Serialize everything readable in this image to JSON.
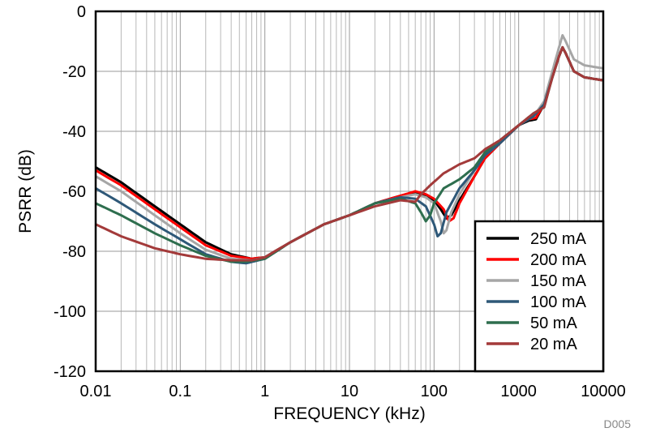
{
  "chart_data": {
    "type": "line",
    "xlabel": "FREQUENCY (kHz)",
    "ylabel": "PSRR (dB)",
    "x_scale": "log",
    "xlim": [
      0.01,
      10000
    ],
    "ylim": [
      -120,
      0
    ],
    "x_ticks": [
      "0.01",
      "0.1",
      "1",
      "10",
      "100",
      "1000",
      "10000"
    ],
    "y_ticks": [
      "0",
      "-20",
      "-40",
      "-60",
      "-80",
      "-100",
      "-120"
    ],
    "grid": true,
    "legend_position": "bottom-right",
    "figure_id": "D005",
    "series": [
      {
        "name": "250 mA",
        "color": "#000000",
        "points": [
          [
            0.01,
            -52
          ],
          [
            0.02,
            -57
          ],
          [
            0.05,
            -65
          ],
          [
            0.1,
            -71
          ],
          [
            0.2,
            -77
          ],
          [
            0.4,
            -81
          ],
          [
            0.7,
            -82.5
          ],
          [
            1,
            -82
          ],
          [
            2,
            -77
          ],
          [
            5,
            -71
          ],
          [
            10,
            -68
          ],
          [
            20,
            -64
          ],
          [
            40,
            -61.5
          ],
          [
            60,
            -60.5
          ],
          [
            80,
            -61.5
          ],
          [
            100,
            -63
          ],
          [
            120,
            -66
          ],
          [
            140,
            -69
          ],
          [
            160,
            -68
          ],
          [
            200,
            -63
          ],
          [
            300,
            -55
          ],
          [
            400,
            -49
          ],
          [
            600,
            -44
          ],
          [
            1000,
            -38
          ],
          [
            1300,
            -36.5
          ],
          [
            1600,
            -36
          ],
          [
            2000,
            -31
          ],
          [
            2500,
            -22
          ],
          [
            3000,
            -15
          ],
          [
            3300,
            -12
          ],
          [
            3600,
            -14
          ],
          [
            4500,
            -20
          ],
          [
            6000,
            -22
          ],
          [
            10000,
            -23
          ]
        ]
      },
      {
        "name": "200 mA",
        "color": "#ff0000",
        "points": [
          [
            0.01,
            -53
          ],
          [
            0.02,
            -58
          ],
          [
            0.05,
            -66
          ],
          [
            0.1,
            -72
          ],
          [
            0.2,
            -78
          ],
          [
            0.4,
            -81.5
          ],
          [
            0.7,
            -82.5
          ],
          [
            1,
            -82
          ],
          [
            2,
            -77
          ],
          [
            5,
            -71
          ],
          [
            10,
            -68
          ],
          [
            20,
            -64
          ],
          [
            40,
            -61.5
          ],
          [
            60,
            -60
          ],
          [
            80,
            -61
          ],
          [
            100,
            -62.5
          ],
          [
            130,
            -66
          ],
          [
            150,
            -70
          ],
          [
            170,
            -69
          ],
          [
            200,
            -64
          ],
          [
            300,
            -55
          ],
          [
            400,
            -49
          ],
          [
            600,
            -44
          ],
          [
            1000,
            -38
          ],
          [
            1300,
            -36
          ],
          [
            1600,
            -35.5
          ],
          [
            2000,
            -31
          ],
          [
            2500,
            -22
          ],
          [
            3000,
            -15
          ],
          [
            3300,
            -12
          ],
          [
            3600,
            -14
          ],
          [
            4500,
            -20
          ],
          [
            6000,
            -22
          ],
          [
            10000,
            -23
          ]
        ]
      },
      {
        "name": "150 mA",
        "color": "#a6a6a6",
        "points": [
          [
            0.01,
            -55
          ],
          [
            0.02,
            -60
          ],
          [
            0.05,
            -68
          ],
          [
            0.1,
            -74
          ],
          [
            0.2,
            -79.5
          ],
          [
            0.4,
            -82.5
          ],
          [
            0.7,
            -83
          ],
          [
            1,
            -82
          ],
          [
            2,
            -77
          ],
          [
            5,
            -71
          ],
          [
            10,
            -68
          ],
          [
            20,
            -64
          ],
          [
            40,
            -62
          ],
          [
            60,
            -61
          ],
          [
            80,
            -62
          ],
          [
            100,
            -64
          ],
          [
            120,
            -70
          ],
          [
            130,
            -74
          ],
          [
            140,
            -73
          ],
          [
            160,
            -67
          ],
          [
            200,
            -61
          ],
          [
            300,
            -53
          ],
          [
            400,
            -48
          ],
          [
            600,
            -44
          ],
          [
            1000,
            -38
          ],
          [
            1500,
            -35
          ],
          [
            2000,
            -30
          ],
          [
            2500,
            -20
          ],
          [
            3000,
            -12
          ],
          [
            3300,
            -8
          ],
          [
            3600,
            -10
          ],
          [
            4500,
            -16
          ],
          [
            6000,
            -18
          ],
          [
            10000,
            -19
          ]
        ]
      },
      {
        "name": "100 mA",
        "color": "#2e5878",
        "points": [
          [
            0.01,
            -59
          ],
          [
            0.02,
            -64
          ],
          [
            0.05,
            -71
          ],
          [
            0.1,
            -76
          ],
          [
            0.2,
            -81
          ],
          [
            0.4,
            -83.5
          ],
          [
            0.6,
            -84
          ],
          [
            1,
            -82.5
          ],
          [
            2,
            -77
          ],
          [
            5,
            -71
          ],
          [
            10,
            -68
          ],
          [
            20,
            -64
          ],
          [
            40,
            -62
          ],
          [
            60,
            -62.5
          ],
          [
            80,
            -65
          ],
          [
            100,
            -71
          ],
          [
            110,
            -75
          ],
          [
            120,
            -74
          ],
          [
            140,
            -67
          ],
          [
            200,
            -59
          ],
          [
            300,
            -53
          ],
          [
            400,
            -48
          ],
          [
            600,
            -44
          ],
          [
            1000,
            -38
          ],
          [
            1500,
            -35
          ],
          [
            2000,
            -31
          ],
          [
            2500,
            -22
          ],
          [
            3000,
            -15
          ],
          [
            3300,
            -12
          ],
          [
            3600,
            -14
          ],
          [
            4500,
            -20
          ],
          [
            6000,
            -22
          ],
          [
            10000,
            -23
          ]
        ]
      },
      {
        "name": "50 mA",
        "color": "#2e6e4e",
        "points": [
          [
            0.01,
            -64
          ],
          [
            0.02,
            -68
          ],
          [
            0.05,
            -74
          ],
          [
            0.1,
            -78
          ],
          [
            0.2,
            -81.5
          ],
          [
            0.4,
            -83.5
          ],
          [
            0.6,
            -83.5
          ],
          [
            1,
            -82.5
          ],
          [
            2,
            -77
          ],
          [
            5,
            -71
          ],
          [
            10,
            -68
          ],
          [
            20,
            -64
          ],
          [
            40,
            -62.5
          ],
          [
            60,
            -64
          ],
          [
            70,
            -67
          ],
          [
            80,
            -70
          ],
          [
            90,
            -68
          ],
          [
            100,
            -64
          ],
          [
            130,
            -59
          ],
          [
            200,
            -56
          ],
          [
            300,
            -52
          ],
          [
            400,
            -47
          ],
          [
            600,
            -43
          ],
          [
            1000,
            -38
          ],
          [
            1500,
            -34
          ],
          [
            2000,
            -32
          ],
          [
            2500,
            -22
          ],
          [
            3000,
            -15
          ],
          [
            3300,
            -12
          ],
          [
            3600,
            -14
          ],
          [
            4500,
            -20
          ],
          [
            6000,
            -22
          ],
          [
            10000,
            -23
          ]
        ]
      },
      {
        "name": "20 mA",
        "color": "#a33a3a",
        "points": [
          [
            0.01,
            -71
          ],
          [
            0.02,
            -75
          ],
          [
            0.05,
            -79
          ],
          [
            0.1,
            -81
          ],
          [
            0.2,
            -82.5
          ],
          [
            0.4,
            -83
          ],
          [
            0.7,
            -83
          ],
          [
            1,
            -82
          ],
          [
            2,
            -77
          ],
          [
            5,
            -71
          ],
          [
            10,
            -68
          ],
          [
            20,
            -65
          ],
          [
            40,
            -63
          ],
          [
            60,
            -63.5
          ],
          [
            70,
            -61
          ],
          [
            90,
            -58
          ],
          [
            130,
            -54
          ],
          [
            200,
            -51
          ],
          [
            300,
            -49
          ],
          [
            400,
            -46
          ],
          [
            600,
            -43
          ],
          [
            1000,
            -38
          ],
          [
            1500,
            -34
          ],
          [
            2000,
            -32
          ],
          [
            2500,
            -22
          ],
          [
            3000,
            -15
          ],
          [
            3300,
            -12
          ],
          [
            3600,
            -14
          ],
          [
            4500,
            -20
          ],
          [
            6000,
            -22
          ],
          [
            10000,
            -23
          ]
        ]
      }
    ]
  }
}
